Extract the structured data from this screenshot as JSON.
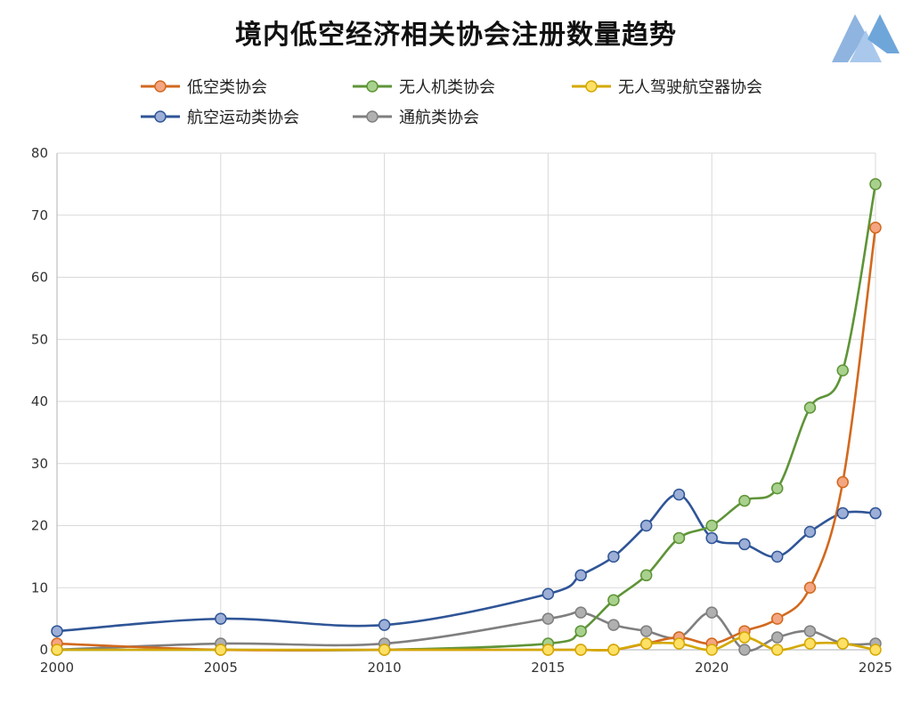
{
  "chart_data": {
    "type": "line",
    "title": "境内低空经济相关协会注册数量趋势",
    "xlabel": "",
    "ylabel": "",
    "x": [
      2000,
      2005,
      2010,
      2015,
      2016,
      2017,
      2018,
      2019,
      2020,
      2021,
      2022,
      2023,
      2024,
      2025
    ],
    "xticks": [
      2000,
      2005,
      2010,
      2015,
      2020,
      2025
    ],
    "xlim": [
      2000,
      2025
    ],
    "yticks": [
      0,
      10,
      20,
      30,
      40,
      50,
      60,
      70,
      80
    ],
    "ylim": [
      0,
      80
    ],
    "grid": true,
    "legend_position": "top",
    "series": [
      {
        "name": "低空类协会",
        "color": "#d2691e",
        "marker_fill": "#f4a582",
        "values": [
          1,
          0,
          0,
          0,
          0,
          0,
          1,
          2,
          1,
          3,
          5,
          10,
          27,
          68
        ]
      },
      {
        "name": "无人机类协会",
        "color": "#5e9437",
        "marker_fill": "#a9d18e",
        "values": [
          0,
          0,
          0,
          1,
          3,
          8,
          12,
          18,
          20,
          24,
          26,
          39,
          45,
          75
        ]
      },
      {
        "name": "无人驾驶航空器协会",
        "color": "#d4a800",
        "marker_fill": "#ffe066",
        "values": [
          0,
          0,
          0,
          0,
          0,
          0,
          1,
          1,
          0,
          2,
          0,
          1,
          1,
          0
        ]
      },
      {
        "name": "航空运动类协会",
        "color": "#2f5597",
        "marker_fill": "#9dafd6",
        "values": [
          3,
          5,
          4,
          9,
          12,
          15,
          20,
          25,
          18,
          17,
          15,
          19,
          22,
          22
        ]
      },
      {
        "name": "通航类协会",
        "color": "#7f7f7f",
        "marker_fill": "#b0b0b0",
        "values": [
          0,
          1,
          1,
          5,
          6,
          4,
          3,
          2,
          6,
          0,
          2,
          3,
          1,
          1
        ]
      }
    ]
  }
}
